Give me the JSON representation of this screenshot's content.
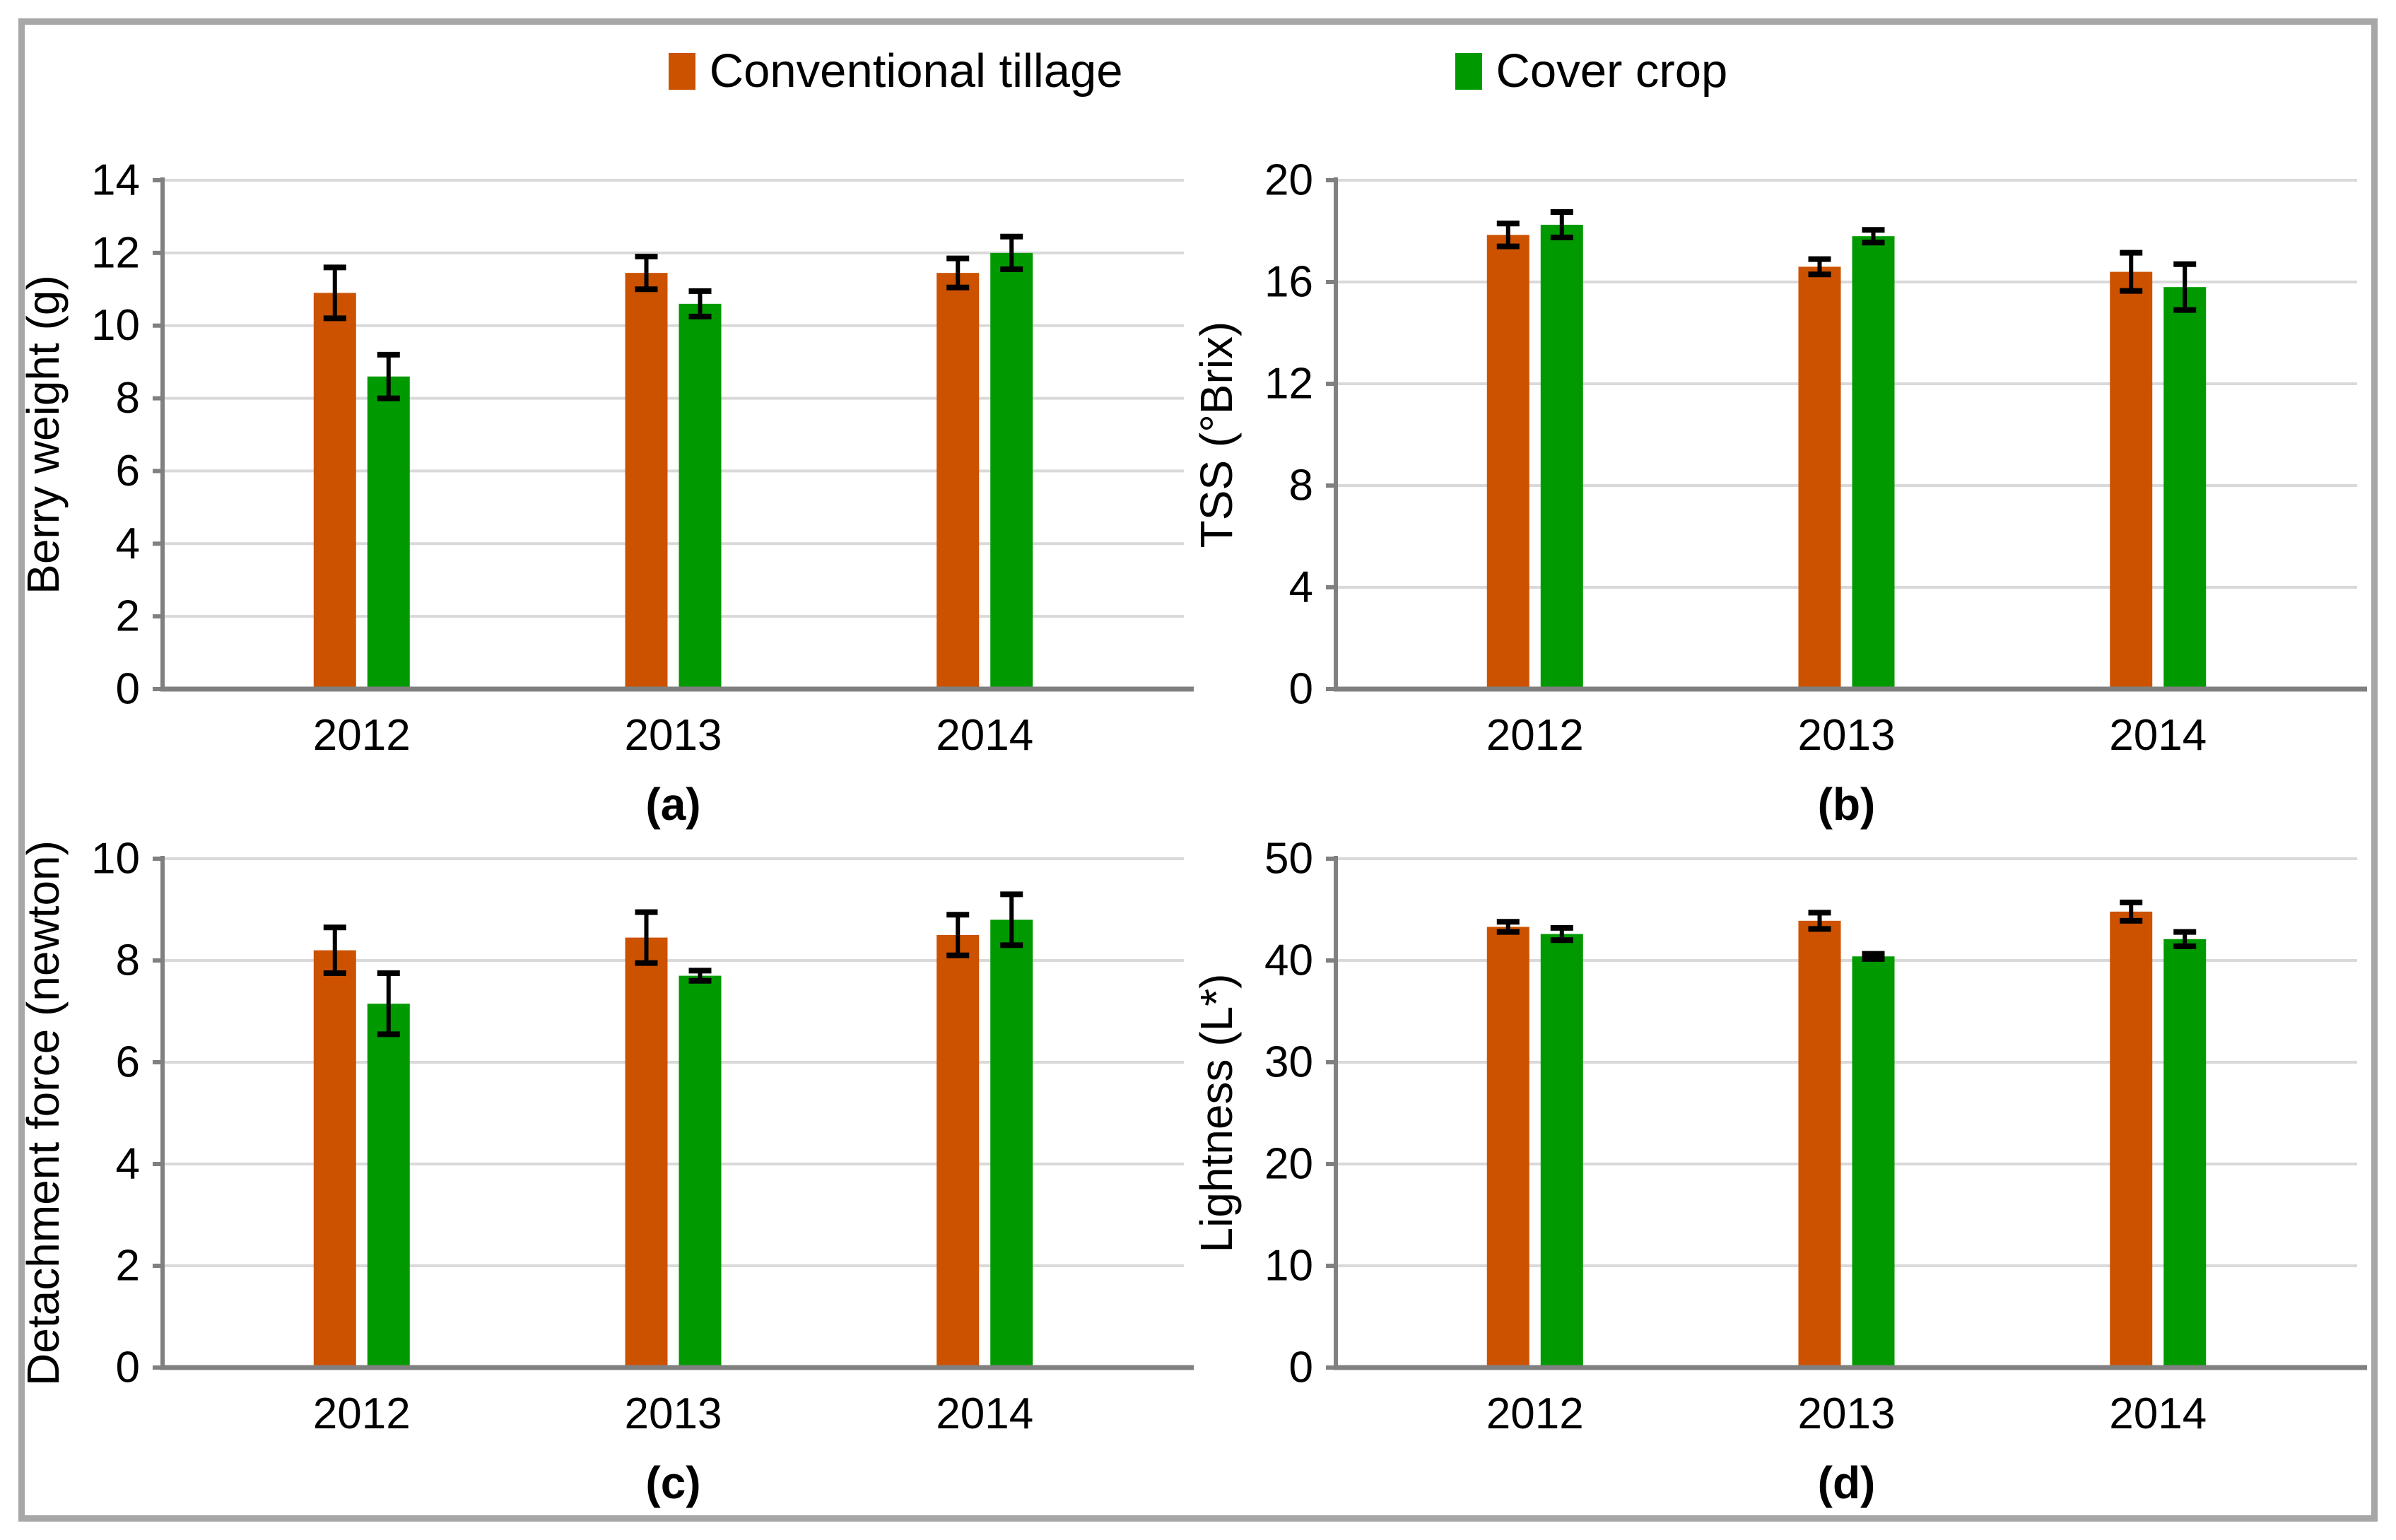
{
  "figure": {
    "background": "#ffffff",
    "border_color": "#a7a7a7",
    "axis_color": "#808080",
    "gridline_color": "#d9d9d9",
    "errorbar_color": "#000000"
  },
  "legend": {
    "items": [
      {
        "label": "Conventional tillage",
        "color": "#cc5200"
      },
      {
        "label": "Cover crop",
        "color": "#009a00"
      }
    ]
  },
  "chart_data": [
    {
      "id": "a",
      "type": "bar",
      "caption": "(a)",
      "title": "",
      "xlabel": "",
      "ylabel": "Berry weight (g)",
      "categories": [
        "2012",
        "2013",
        "2014"
      ],
      "ylim": [
        0,
        14
      ],
      "ytick_step": 2,
      "ytick_labels": [
        "0",
        "2",
        "4",
        "6",
        "8",
        "10",
        "12",
        "14"
      ],
      "grid": true,
      "legend_position": "top-center-shared",
      "series": [
        {
          "name": "Conventional tillage",
          "color": "#cc5200",
          "values": [
            10.9,
            11.45,
            11.45
          ],
          "errors": [
            0.7,
            0.45,
            0.4
          ]
        },
        {
          "name": "Cover crop",
          "color": "#009a00",
          "values": [
            8.6,
            10.6,
            12.0
          ],
          "errors": [
            0.6,
            0.35,
            0.45
          ]
        }
      ]
    },
    {
      "id": "b",
      "type": "bar",
      "caption": "(b)",
      "title": "",
      "xlabel": "",
      "ylabel": "TSS (°Brix)",
      "categories": [
        "2012",
        "2013",
        "2014"
      ],
      "ylim": [
        0,
        20
      ],
      "ytick_step": 4,
      "ytick_labels": [
        "0",
        "4",
        "8",
        "12",
        "16",
        "20"
      ],
      "grid": true,
      "legend_position": "top-center-shared",
      "series": [
        {
          "name": "Conventional tillage",
          "color": "#cc5200",
          "values": [
            17.85,
            16.6,
            16.4
          ],
          "errors": [
            0.45,
            0.3,
            0.75
          ]
        },
        {
          "name": "Cover crop",
          "color": "#009a00",
          "values": [
            18.25,
            17.8,
            15.8
          ],
          "errors": [
            0.5,
            0.25,
            0.9
          ]
        }
      ]
    },
    {
      "id": "c",
      "type": "bar",
      "caption": "(c)",
      "title": "",
      "xlabel": "",
      "ylabel": "Detachment force (newton)",
      "categories": [
        "2012",
        "2013",
        "2014"
      ],
      "ylim": [
        0,
        10
      ],
      "ytick_step": 2,
      "ytick_labels": [
        "0",
        "2",
        "4",
        "6",
        "8",
        "10"
      ],
      "grid": true,
      "legend_position": "top-center-shared",
      "series": [
        {
          "name": "Conventional tillage",
          "color": "#cc5200",
          "values": [
            8.2,
            8.45,
            8.5
          ],
          "errors": [
            0.45,
            0.5,
            0.4
          ]
        },
        {
          "name": "Cover crop",
          "color": "#009a00",
          "values": [
            7.15,
            7.7,
            8.8
          ],
          "errors": [
            0.6,
            0.1,
            0.5
          ]
        }
      ]
    },
    {
      "id": "d",
      "type": "bar",
      "caption": "(d)",
      "title": "",
      "xlabel": "",
      "ylabel": "Lightness (L*)",
      "categories": [
        "2012",
        "2013",
        "2014"
      ],
      "ylim": [
        0,
        50
      ],
      "ytick_step": 10,
      "ytick_labels": [
        "0",
        "10",
        "20",
        "30",
        "40",
        "50"
      ],
      "grid": true,
      "legend_position": "top-center-shared",
      "series": [
        {
          "name": "Conventional tillage",
          "color": "#cc5200",
          "values": [
            43.3,
            43.9,
            44.8
          ],
          "errors": [
            0.5,
            0.8,
            0.9
          ]
        },
        {
          "name": "Cover crop",
          "color": "#009a00",
          "values": [
            42.6,
            40.4,
            42.1
          ],
          "errors": [
            0.6,
            0.25,
            0.7
          ]
        }
      ]
    }
  ]
}
